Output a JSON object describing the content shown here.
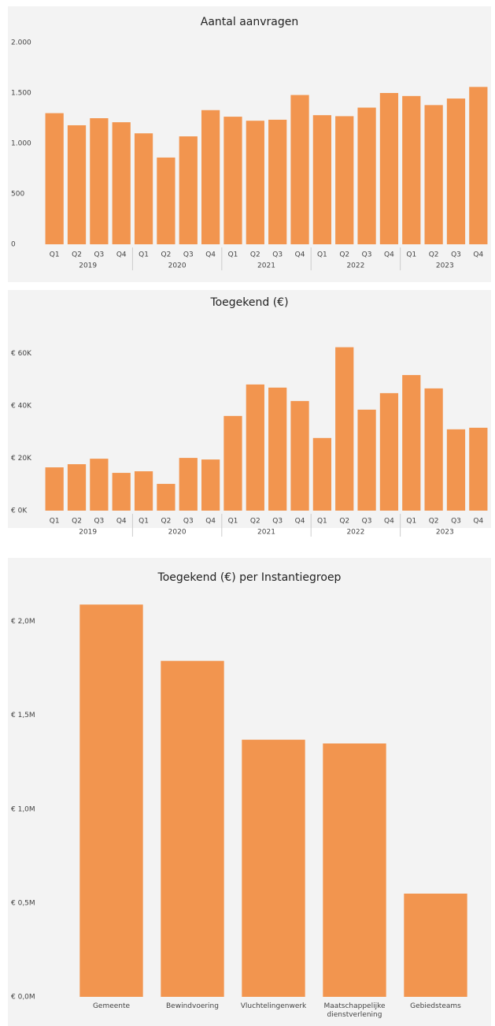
{
  "chart_data": [
    {
      "type": "bar",
      "title": "Aantal aanvragen",
      "color": "#f2954f",
      "categories": [
        "Q1",
        "Q2",
        "Q3",
        "Q4",
        "Q1",
        "Q2",
        "Q3",
        "Q4",
        "Q1",
        "Q2",
        "Q3",
        "Q4",
        "Q1",
        "Q2",
        "Q3",
        "Q4",
        "Q1",
        "Q2",
        "Q3",
        "Q4"
      ],
      "category_groups": [
        "2019",
        "2020",
        "2021",
        "2022",
        "2023"
      ],
      "values": [
        1300,
        1180,
        1250,
        1210,
        1100,
        860,
        1070,
        1330,
        1265,
        1225,
        1235,
        1480,
        1280,
        1270,
        1355,
        1500,
        1470,
        1380,
        1445,
        1560
      ],
      "ylim": [
        0,
        2000
      ],
      "yticks": [
        0,
        500,
        {
          "value": 1000,
          "label": "1.000"
        },
        {
          "value": 1500,
          "label": "1.500"
        },
        {
          "value": 2000,
          "label": "2.000"
        }
      ]
    },
    {
      "type": "bar",
      "title": "Toegekend (€)",
      "color": "#f2954f",
      "categories": [
        "Q1",
        "Q2",
        "Q3",
        "Q4",
        "Q1",
        "Q2",
        "Q3",
        "Q4",
        "Q1",
        "Q2",
        "Q3",
        "Q4",
        "Q1",
        "Q2",
        "Q3",
        "Q4",
        "Q1",
        "Q2",
        "Q3",
        "Q4"
      ],
      "category_groups": [
        "2019",
        "2020",
        "2021",
        "2022",
        "2023"
      ],
      "values": [
        16500,
        17700,
        19800,
        14400,
        15000,
        10200,
        20100,
        19500,
        36100,
        48100,
        46900,
        41800,
        27700,
        62300,
        38500,
        44800,
        51700,
        46600,
        31000,
        31600
      ],
      "ylim": [
        0,
        70000
      ],
      "yticks": [
        {
          "value": 0,
          "label": "€ 0K"
        },
        {
          "value": 20000,
          "label": "€ 20K"
        },
        {
          "value": 40000,
          "label": "€ 40K"
        },
        {
          "value": 60000,
          "label": "€ 60K"
        }
      ]
    },
    {
      "type": "bar",
      "title": "Toegekend (€) per Instantiegroep",
      "color": "#f2954f",
      "categories": [
        "Gemeente",
        "Bewindvoering",
        "Vluchtelingenwerk",
        "Maatschappelijke dienstverlening",
        "Gebiedsteams"
      ],
      "values": [
        2090000,
        1790000,
        1370000,
        1350000,
        550000
      ],
      "ylim": [
        0,
        2200000
      ],
      "yticks": [
        {
          "value": 0,
          "label": "€ 0,0M"
        },
        {
          "value": 500000,
          "label": "€ 0,5M"
        },
        {
          "value": 1000000,
          "label": "€ 1,0M"
        },
        {
          "value": 1500000,
          "label": "€ 1,5M"
        },
        {
          "value": 2000000,
          "label": "€ 2,0M"
        }
      ]
    }
  ]
}
